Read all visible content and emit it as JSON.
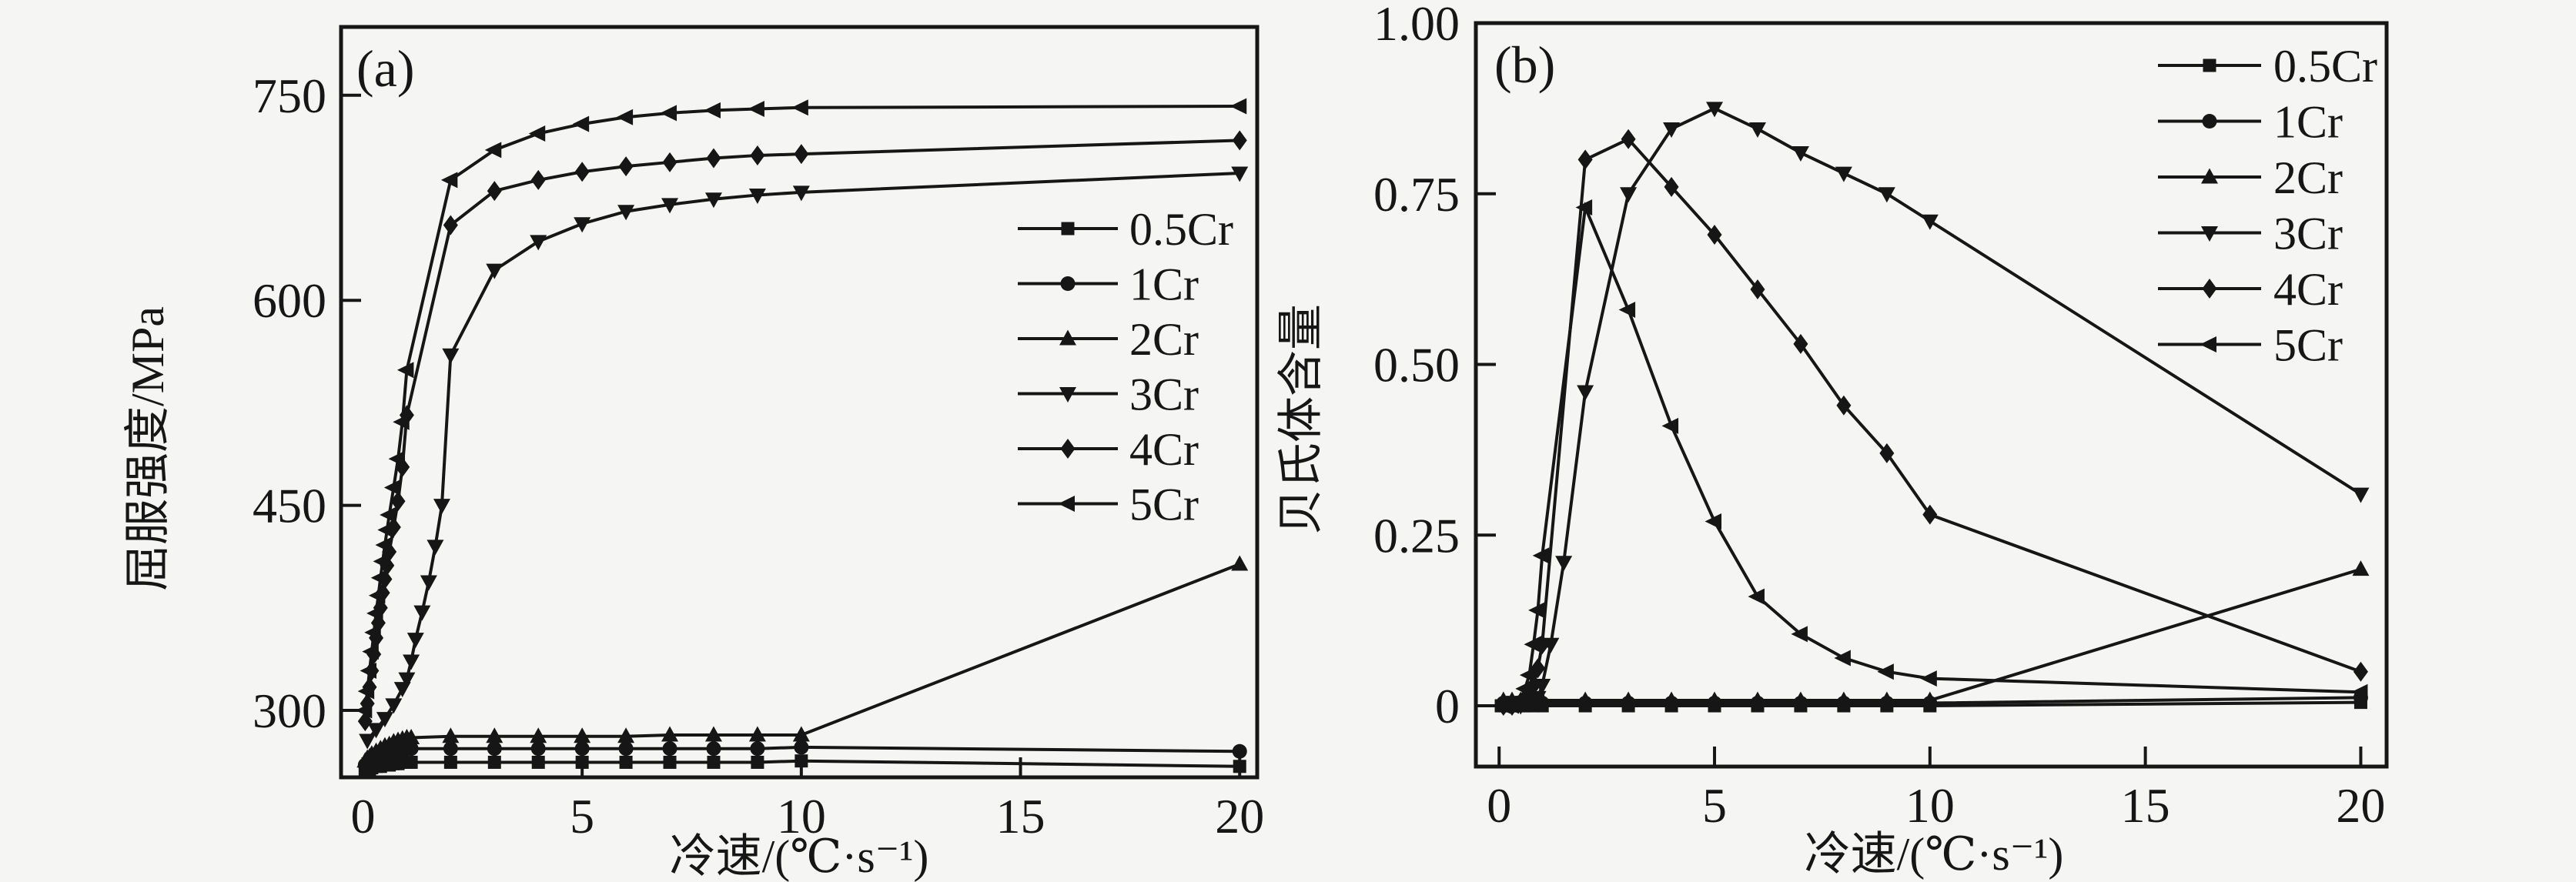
{
  "figure": {
    "background": "#f5f5f3",
    "ink": "#161616"
  },
  "chart_data": [
    {
      "id": "a",
      "type": "line",
      "panel_label": "(a)",
      "title": "",
      "xlabel": "冷速/(℃·s⁻¹)",
      "ylabel": "屈服强度/MPa",
      "xlim": [
        -0.5,
        20.4
      ],
      "ylim": [
        251,
        800
      ],
      "xticks": [
        0,
        5,
        10,
        15,
        20
      ],
      "xtick_labels": [
        "0",
        "5",
        "10",
        "15",
        "20"
      ],
      "yticks": [
        300,
        450,
        600,
        750
      ],
      "ytick_labels": [
        "300",
        "450",
        "600",
        "750"
      ],
      "grid": false,
      "legend_position": "inside-middle-right",
      "legend_entries": [
        "0.5Cr",
        "1Cr",
        "2Cr",
        "3Cr",
        "4Cr",
        "5Cr"
      ],
      "series": [
        {
          "name": "0.5Cr",
          "marker": "square",
          "points": [
            [
              0.05,
              256
            ],
            [
              0.1,
              257
            ],
            [
              0.15,
              257
            ],
            [
              0.2,
              258
            ],
            [
              0.3,
              259
            ],
            [
              0.4,
              259
            ],
            [
              0.5,
              260
            ],
            [
              0.6,
              260
            ],
            [
              0.7,
              261
            ],
            [
              0.8,
              261
            ],
            [
              0.9,
              262
            ],
            [
              1.0,
              262
            ],
            [
              1.1,
              262
            ],
            [
              2,
              262
            ],
            [
              3,
              262
            ],
            [
              4,
              262
            ],
            [
              5,
              262
            ],
            [
              6,
              262
            ],
            [
              7,
              262
            ],
            [
              8,
              262
            ],
            [
              9,
              262
            ],
            [
              10,
              263
            ],
            [
              20,
              259
            ]
          ]
        },
        {
          "name": "1Cr",
          "marker": "circle",
          "points": [
            [
              0.05,
              260
            ],
            [
              0.1,
              261
            ],
            [
              0.15,
              262
            ],
            [
              0.2,
              263
            ],
            [
              0.3,
              264
            ],
            [
              0.4,
              266
            ],
            [
              0.5,
              267
            ],
            [
              0.6,
              268
            ],
            [
              0.7,
              269
            ],
            [
              0.8,
              270
            ],
            [
              0.9,
              271
            ],
            [
              1.0,
              272
            ],
            [
              1.1,
              272
            ],
            [
              2,
              272
            ],
            [
              3,
              272
            ],
            [
              4,
              272
            ],
            [
              5,
              272
            ],
            [
              6,
              272
            ],
            [
              7,
              272
            ],
            [
              8,
              272
            ],
            [
              9,
              272
            ],
            [
              10,
              273
            ],
            [
              20,
              270
            ]
          ]
        },
        {
          "name": "2Cr",
          "marker": "triangle-up",
          "points": [
            [
              0.05,
              263
            ],
            [
              0.1,
              265
            ],
            [
              0.15,
              266
            ],
            [
              0.2,
              268
            ],
            [
              0.3,
              270
            ],
            [
              0.4,
              272
            ],
            [
              0.5,
              274
            ],
            [
              0.6,
              275
            ],
            [
              0.7,
              277
            ],
            [
              0.8,
              278
            ],
            [
              0.9,
              279
            ],
            [
              1.0,
              280
            ],
            [
              1.1,
              280
            ],
            [
              2,
              281
            ],
            [
              3,
              281
            ],
            [
              4,
              281
            ],
            [
              5,
              281
            ],
            [
              6,
              281
            ],
            [
              7,
              282
            ],
            [
              8,
              282
            ],
            [
              9,
              282
            ],
            [
              10,
              282
            ],
            [
              20,
              407
            ]
          ]
        },
        {
          "name": "3Cr",
          "marker": "triangle-down",
          "points": [
            [
              0.1,
              278
            ],
            [
              0.3,
              286
            ],
            [
              0.5,
              294
            ],
            [
              0.7,
              304
            ],
            [
              0.9,
              316
            ],
            [
              1.0,
              323
            ],
            [
              1.1,
              336
            ],
            [
              1.2,
              352
            ],
            [
              1.35,
              372
            ],
            [
              1.5,
              394
            ],
            [
              1.65,
              420
            ],
            [
              1.8,
              450
            ],
            [
              2,
              560
            ],
            [
              3,
              622
            ],
            [
              4,
              643
            ],
            [
              5,
              656
            ],
            [
              6,
              665
            ],
            [
              7,
              670
            ],
            [
              8,
              674
            ],
            [
              9,
              677
            ],
            [
              10,
              679
            ],
            [
              20,
              693
            ]
          ]
        },
        {
          "name": "4Cr",
          "marker": "diamond",
          "points": [
            [
              0.05,
              292
            ],
            [
              0.1,
              305
            ],
            [
              0.15,
              317
            ],
            [
              0.2,
              329
            ],
            [
              0.25,
              341
            ],
            [
              0.3,
              353
            ],
            [
              0.35,
              364
            ],
            [
              0.4,
              375
            ],
            [
              0.45,
              386
            ],
            [
              0.5,
              396
            ],
            [
              0.55,
              406
            ],
            [
              0.6,
              416
            ],
            [
              0.7,
              434
            ],
            [
              0.8,
              453
            ],
            [
              0.9,
              478
            ],
            [
              1.0,
              516
            ],
            [
              2,
              655
            ],
            [
              3,
              680
            ],
            [
              4,
              688
            ],
            [
              5,
              694
            ],
            [
              6,
              698
            ],
            [
              7,
              701
            ],
            [
              8,
              704
            ],
            [
              9,
              706
            ],
            [
              10,
              707
            ],
            [
              20,
              717
            ]
          ]
        },
        {
          "name": "5Cr",
          "marker": "triangle-left",
          "points": [
            [
              0.05,
              300
            ],
            [
              0.1,
              314
            ],
            [
              0.15,
              329
            ],
            [
              0.2,
              343
            ],
            [
              0.25,
              357
            ],
            [
              0.3,
              371
            ],
            [
              0.35,
              384
            ],
            [
              0.4,
              397
            ],
            [
              0.45,
              409
            ],
            [
              0.5,
              421
            ],
            [
              0.55,
              432
            ],
            [
              0.6,
              443
            ],
            [
              0.7,
              463
            ],
            [
              0.8,
              484
            ],
            [
              0.9,
              511
            ],
            [
              1.0,
              549
            ],
            [
              2,
              688
            ],
            [
              3,
              710
            ],
            [
              4,
              722
            ],
            [
              5,
              729
            ],
            [
              6,
              734
            ],
            [
              7,
              737
            ],
            [
              8,
              739
            ],
            [
              9,
              740
            ],
            [
              10,
              741
            ],
            [
              20,
              742
            ]
          ]
        }
      ]
    },
    {
      "id": "b",
      "type": "line",
      "panel_label": "(b)",
      "title": "",
      "xlabel": "冷速/(℃·s⁻¹)",
      "ylabel": "贝氏体含量",
      "xlim": [
        -0.54,
        20.6
      ],
      "ylim": [
        -0.089,
        1.0
      ],
      "xticks": [
        0,
        5,
        10,
        15,
        20
      ],
      "xtick_labels": [
        "0",
        "5",
        "10",
        "15",
        "20"
      ],
      "yticks": [
        0,
        0.25,
        0.5,
        0.75,
        1.0
      ],
      "ytick_labels": [
        "0",
        "0.25",
        "0.50",
        "0.75",
        "1.00"
      ],
      "grid": false,
      "legend_position": "inside-top-right",
      "legend_entries": [
        "0.5Cr",
        "1Cr",
        "2Cr",
        "3Cr",
        "4Cr",
        "5Cr"
      ],
      "series": [
        {
          "name": "0.5Cr",
          "marker": "square",
          "points": [
            [
              0.05,
              0
            ],
            [
              0.15,
              0
            ],
            [
              0.25,
              0
            ],
            [
              0.35,
              0
            ],
            [
              0.45,
              0
            ],
            [
              0.55,
              0
            ],
            [
              0.65,
              0
            ],
            [
              0.8,
              0
            ],
            [
              1,
              0
            ],
            [
              2,
              0
            ],
            [
              3,
              0
            ],
            [
              4,
              0
            ],
            [
              5,
              0
            ],
            [
              6,
              0
            ],
            [
              7,
              0
            ],
            [
              8,
              0
            ],
            [
              9,
              0
            ],
            [
              10,
              0
            ],
            [
              20,
              0.005
            ]
          ]
        },
        {
          "name": "1Cr",
          "marker": "circle",
          "points": [
            [
              0.1,
              0.004
            ],
            [
              0.2,
              0.004
            ],
            [
              0.3,
              0.004
            ],
            [
              0.4,
              0.004
            ],
            [
              0.5,
              0.004
            ],
            [
              0.6,
              0.004
            ],
            [
              0.7,
              0.004
            ],
            [
              0.9,
              0.004
            ],
            [
              1,
              0.004
            ],
            [
              2,
              0.004
            ],
            [
              3,
              0.004
            ],
            [
              4,
              0.004
            ],
            [
              5,
              0.004
            ],
            [
              6,
              0.004
            ],
            [
              7,
              0.004
            ],
            [
              8,
              0.004
            ],
            [
              9,
              0.004
            ],
            [
              10,
              0.004
            ],
            [
              20,
              0.012
            ]
          ]
        },
        {
          "name": "2Cr",
          "marker": "triangle-up",
          "points": [
            [
              0.1,
              0.008
            ],
            [
              0.3,
              0.008
            ],
            [
              0.5,
              0.008
            ],
            [
              0.7,
              0.008
            ],
            [
              0.9,
              0.008
            ],
            [
              1,
              0.008
            ],
            [
              2,
              0.008
            ],
            [
              3,
              0.008
            ],
            [
              4,
              0.008
            ],
            [
              5,
              0.008
            ],
            [
              6,
              0.008
            ],
            [
              7,
              0.008
            ],
            [
              8,
              0.008
            ],
            [
              9,
              0.008
            ],
            [
              10,
              0.008
            ],
            [
              20,
              0.2
            ]
          ]
        },
        {
          "name": "3Cr",
          "marker": "triangle-down",
          "points": [
            [
              0.1,
              0
            ],
            [
              0.3,
              0
            ],
            [
              0.5,
              0
            ],
            [
              0.7,
              0.005
            ],
            [
              0.9,
              0.012
            ],
            [
              1.0,
              0.03
            ],
            [
              1.2,
              0.09
            ],
            [
              1.5,
              0.21
            ],
            [
              2,
              0.46
            ],
            [
              3,
              0.75
            ],
            [
              4,
              0.845
            ],
            [
              5,
              0.875
            ],
            [
              6,
              0.845
            ],
            [
              7,
              0.81
            ],
            [
              8,
              0.78
            ],
            [
              9,
              0.75
            ],
            [
              10,
              0.71
            ],
            [
              20,
              0.31
            ]
          ]
        },
        {
          "name": "4Cr",
          "marker": "diamond",
          "points": [
            [
              0.1,
              0
            ],
            [
              0.3,
              0
            ],
            [
              0.5,
              0.005
            ],
            [
              0.7,
              0.015
            ],
            [
              0.8,
              0.03
            ],
            [
              0.9,
              0.055
            ],
            [
              1,
              0.09
            ],
            [
              2,
              0.8
            ],
            [
              3,
              0.83
            ],
            [
              4,
              0.76
            ],
            [
              5,
              0.69
            ],
            [
              6,
              0.61
            ],
            [
              7,
              0.53
            ],
            [
              8,
              0.44
            ],
            [
              9,
              0.37
            ],
            [
              10,
              0.28
            ],
            [
              20,
              0.05
            ]
          ]
        },
        {
          "name": "5Cr",
          "marker": "triangle-left",
          "points": [
            [
              0.1,
              0
            ],
            [
              0.3,
              0
            ],
            [
              0.5,
              0.01
            ],
            [
              0.6,
              0.025
            ],
            [
              0.7,
              0.045
            ],
            [
              0.8,
              0.09
            ],
            [
              0.9,
              0.14
            ],
            [
              1,
              0.22
            ],
            [
              2,
              0.73
            ],
            [
              3,
              0.58
            ],
            [
              4,
              0.41
            ],
            [
              5,
              0.27
            ],
            [
              6,
              0.16
            ],
            [
              7,
              0.105
            ],
            [
              8,
              0.07
            ],
            [
              9,
              0.05
            ],
            [
              10,
              0.04
            ],
            [
              20,
              0.02
            ]
          ]
        }
      ]
    }
  ]
}
